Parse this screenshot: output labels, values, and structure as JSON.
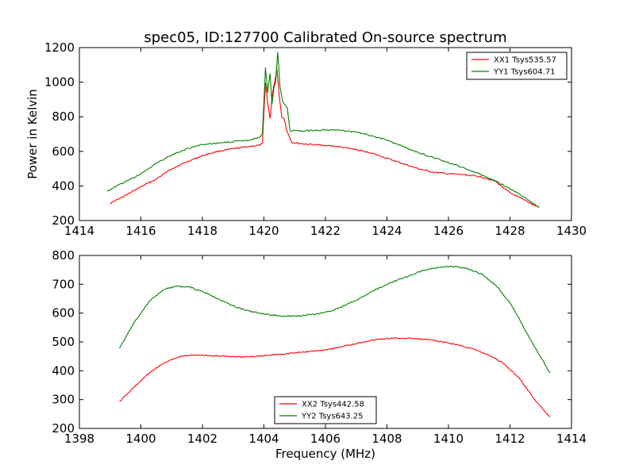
{
  "figure": {
    "title": "spec05, ID:127700 Calibrated On-source spectrum",
    "xlabel": "Frequency (MHz)"
  },
  "chart_data": [
    {
      "type": "line",
      "title": "spec05, ID:127700 Calibrated On-source spectrum",
      "xlabel": "",
      "ylabel": "Power in Kelvin",
      "xlim": [
        1414,
        1430
      ],
      "ylim": [
        200,
        1200
      ],
      "xticks": [
        1414,
        1416,
        1418,
        1420,
        1422,
        1424,
        1426,
        1428,
        1430
      ],
      "yticks": [
        200,
        400,
        600,
        800,
        1000,
        1200
      ],
      "grid": false,
      "legend": "top-right",
      "series": [
        {
          "name": "XX1 Tsys535.57",
          "color": "#ff0000",
          "points": [
            [
              1415.0,
              300
            ],
            [
              1415.5,
              345
            ],
            [
              1416.0,
              395
            ],
            [
              1416.5,
              440
            ],
            [
              1417.0,
              500
            ],
            [
              1417.5,
              540
            ],
            [
              1418.0,
              575
            ],
            [
              1418.5,
              600
            ],
            [
              1419.0,
              615
            ],
            [
              1419.5,
              628
            ],
            [
              1419.85,
              635
            ],
            [
              1419.95,
              645
            ],
            [
              1420.05,
              1000
            ],
            [
              1420.12,
              880
            ],
            [
              1420.2,
              790
            ],
            [
              1420.28,
              940
            ],
            [
              1420.35,
              1000
            ],
            [
              1420.42,
              1080
            ],
            [
              1420.5,
              920
            ],
            [
              1420.58,
              800
            ],
            [
              1420.66,
              790
            ],
            [
              1420.74,
              720
            ],
            [
              1420.82,
              690
            ],
            [
              1420.9,
              652
            ],
            [
              1421.2,
              645
            ],
            [
              1421.5,
              640
            ],
            [
              1422.0,
              635
            ],
            [
              1422.5,
              625
            ],
            [
              1423.0,
              610
            ],
            [
              1423.5,
              590
            ],
            [
              1424.0,
              560
            ],
            [
              1424.5,
              530
            ],
            [
              1425.0,
              500
            ],
            [
              1425.5,
              480
            ],
            [
              1426.0,
              470
            ],
            [
              1426.5,
              465
            ],
            [
              1427.0,
              455
            ],
            [
              1427.5,
              430
            ],
            [
              1428.0,
              360
            ],
            [
              1428.5,
              315
            ],
            [
              1428.95,
              275
            ]
          ]
        },
        {
          "name": "YY1 Tsys604.71",
          "color": "#008000",
          "points": [
            [
              1414.9,
              370
            ],
            [
              1415.5,
              425
            ],
            [
              1416.0,
              470
            ],
            [
              1416.5,
              530
            ],
            [
              1417.0,
              580
            ],
            [
              1417.5,
              615
            ],
            [
              1418.0,
              640
            ],
            [
              1418.5,
              648
            ],
            [
              1419.0,
              656
            ],
            [
              1419.5,
              665
            ],
            [
              1419.85,
              680
            ],
            [
              1419.95,
              700
            ],
            [
              1420.05,
              1085
            ],
            [
              1420.12,
              940
            ],
            [
              1420.2,
              1050
            ],
            [
              1420.26,
              870
            ],
            [
              1420.32,
              960
            ],
            [
              1420.38,
              1000
            ],
            [
              1420.45,
              1175
            ],
            [
              1420.52,
              980
            ],
            [
              1420.6,
              890
            ],
            [
              1420.68,
              870
            ],
            [
              1420.76,
              850
            ],
            [
              1420.85,
              720
            ],
            [
              1421.2,
              718
            ],
            [
              1421.5,
              720
            ],
            [
              1422.0,
              725
            ],
            [
              1422.5,
              722
            ],
            [
              1423.0,
              712
            ],
            [
              1423.5,
              690
            ],
            [
              1424.0,
              665
            ],
            [
              1424.5,
              630
            ],
            [
              1425.0,
              595
            ],
            [
              1425.5,
              565
            ],
            [
              1426.0,
              535
            ],
            [
              1426.5,
              505
            ],
            [
              1427.0,
              470
            ],
            [
              1427.5,
              430
            ],
            [
              1428.0,
              385
            ],
            [
              1428.5,
              330
            ],
            [
              1428.95,
              275
            ]
          ]
        }
      ]
    },
    {
      "type": "line",
      "title": "",
      "xlabel": "Frequency (MHz)",
      "ylabel": "",
      "xlim": [
        1398,
        1414
      ],
      "ylim": [
        200,
        800
      ],
      "xticks": [
        1398,
        1400,
        1402,
        1404,
        1406,
        1408,
        1410,
        1412,
        1414
      ],
      "yticks": [
        200,
        300,
        400,
        500,
        600,
        700,
        800
      ],
      "grid": false,
      "legend": "bottom-center",
      "series": [
        {
          "name": "XX2 Tsys442.58",
          "color": "#ff0000",
          "points": [
            [
              1399.3,
              292
            ],
            [
              1399.8,
              345
            ],
            [
              1400.3,
              395
            ],
            [
              1400.8,
              430
            ],
            [
              1401.3,
              450
            ],
            [
              1401.8,
              455
            ],
            [
              1402.3,
              452
            ],
            [
              1402.8,
              450
            ],
            [
              1403.3,
              448
            ],
            [
              1403.8,
              450
            ],
            [
              1404.3,
              455
            ],
            [
              1404.8,
              460
            ],
            [
              1405.3,
              465
            ],
            [
              1405.8,
              470
            ],
            [
              1406.3,
              478
            ],
            [
              1406.8,
              490
            ],
            [
              1407.3,
              502
            ],
            [
              1407.8,
              510
            ],
            [
              1408.3,
              513
            ],
            [
              1408.8,
              512
            ],
            [
              1409.3,
              508
            ],
            [
              1409.8,
              500
            ],
            [
              1410.3,
              490
            ],
            [
              1410.8,
              475
            ],
            [
              1411.3,
              455
            ],
            [
              1411.8,
              425
            ],
            [
              1412.3,
              375
            ],
            [
              1412.8,
              300
            ],
            [
              1413.3,
              240
            ]
          ]
        },
        {
          "name": "YY2 Tsys643.25",
          "color": "#008000",
          "points": [
            [
              1399.3,
              478
            ],
            [
              1399.8,
              570
            ],
            [
              1400.3,
              645
            ],
            [
              1400.8,
              685
            ],
            [
              1401.2,
              693
            ],
            [
              1401.6,
              690
            ],
            [
              1402.1,
              670
            ],
            [
              1402.6,
              645
            ],
            [
              1403.1,
              620
            ],
            [
              1403.6,
              605
            ],
            [
              1404.1,
              595
            ],
            [
              1404.6,
              590
            ],
            [
              1405.1,
              590
            ],
            [
              1405.6,
              595
            ],
            [
              1406.1,
              605
            ],
            [
              1406.6,
              625
            ],
            [
              1407.1,
              650
            ],
            [
              1407.6,
              680
            ],
            [
              1408.1,
              705
            ],
            [
              1408.6,
              725
            ],
            [
              1409.1,
              745
            ],
            [
              1409.6,
              757
            ],
            [
              1410.1,
              762
            ],
            [
              1410.6,
              755
            ],
            [
              1411.1,
              735
            ],
            [
              1411.6,
              690
            ],
            [
              1412.1,
              620
            ],
            [
              1412.6,
              520
            ],
            [
              1413.3,
              393
            ]
          ]
        }
      ]
    }
  ]
}
